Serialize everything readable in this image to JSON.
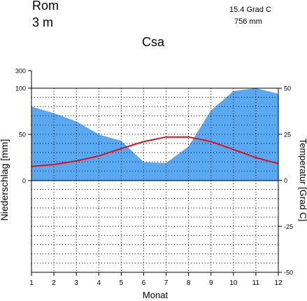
{
  "header": {
    "station": "Rom",
    "elevation": "3  m",
    "mean_temperature": "15.4 Grad C",
    "annual_precipitation": "756 mm",
    "climate_class": "Csa"
  },
  "colors": {
    "precipitation_fill": "#5aa8f0",
    "temperature_line": "#e0101a",
    "grid": "#000000"
  },
  "chart_data": {
    "type": "area",
    "title": "Csa",
    "xlabel": "Monat",
    "ylabel_left": "Niederschlag [mm]",
    "ylabel_right": "Temperatur [Grad C]",
    "x": [
      1,
      2,
      3,
      4,
      5,
      6,
      7,
      8,
      9,
      10,
      11,
      12
    ],
    "x_ticks": [
      "1",
      "2",
      "3",
      "4",
      "5",
      "6",
      "7",
      "8",
      "9",
      "10",
      "11",
      "12"
    ],
    "xlim": [
      1,
      12
    ],
    "left_ticks": [
      {
        "label": "0",
        "value": 0
      },
      {
        "label": "50",
        "value": 50
      },
      {
        "label": "100",
        "value": 100
      },
      {
        "label": "300",
        "value": 300
      }
    ],
    "right_ticks": [
      "50",
      "25",
      "0",
      "-25",
      "-50"
    ],
    "temp_range": [
      -50,
      50
    ],
    "grid": true,
    "series": [
      {
        "kind": "precipitation",
        "values": [
          80,
          73,
          64,
          50,
          43,
          20,
          19,
          37,
          76,
          97,
          100,
          94
        ]
      },
      {
        "kind": "temperature",
        "values": [
          7.5,
          8.5,
          10.5,
          13.2,
          17.2,
          21.0,
          23.5,
          23.5,
          21.0,
          16.7,
          12.3,
          9.0
        ]
      }
    ]
  }
}
